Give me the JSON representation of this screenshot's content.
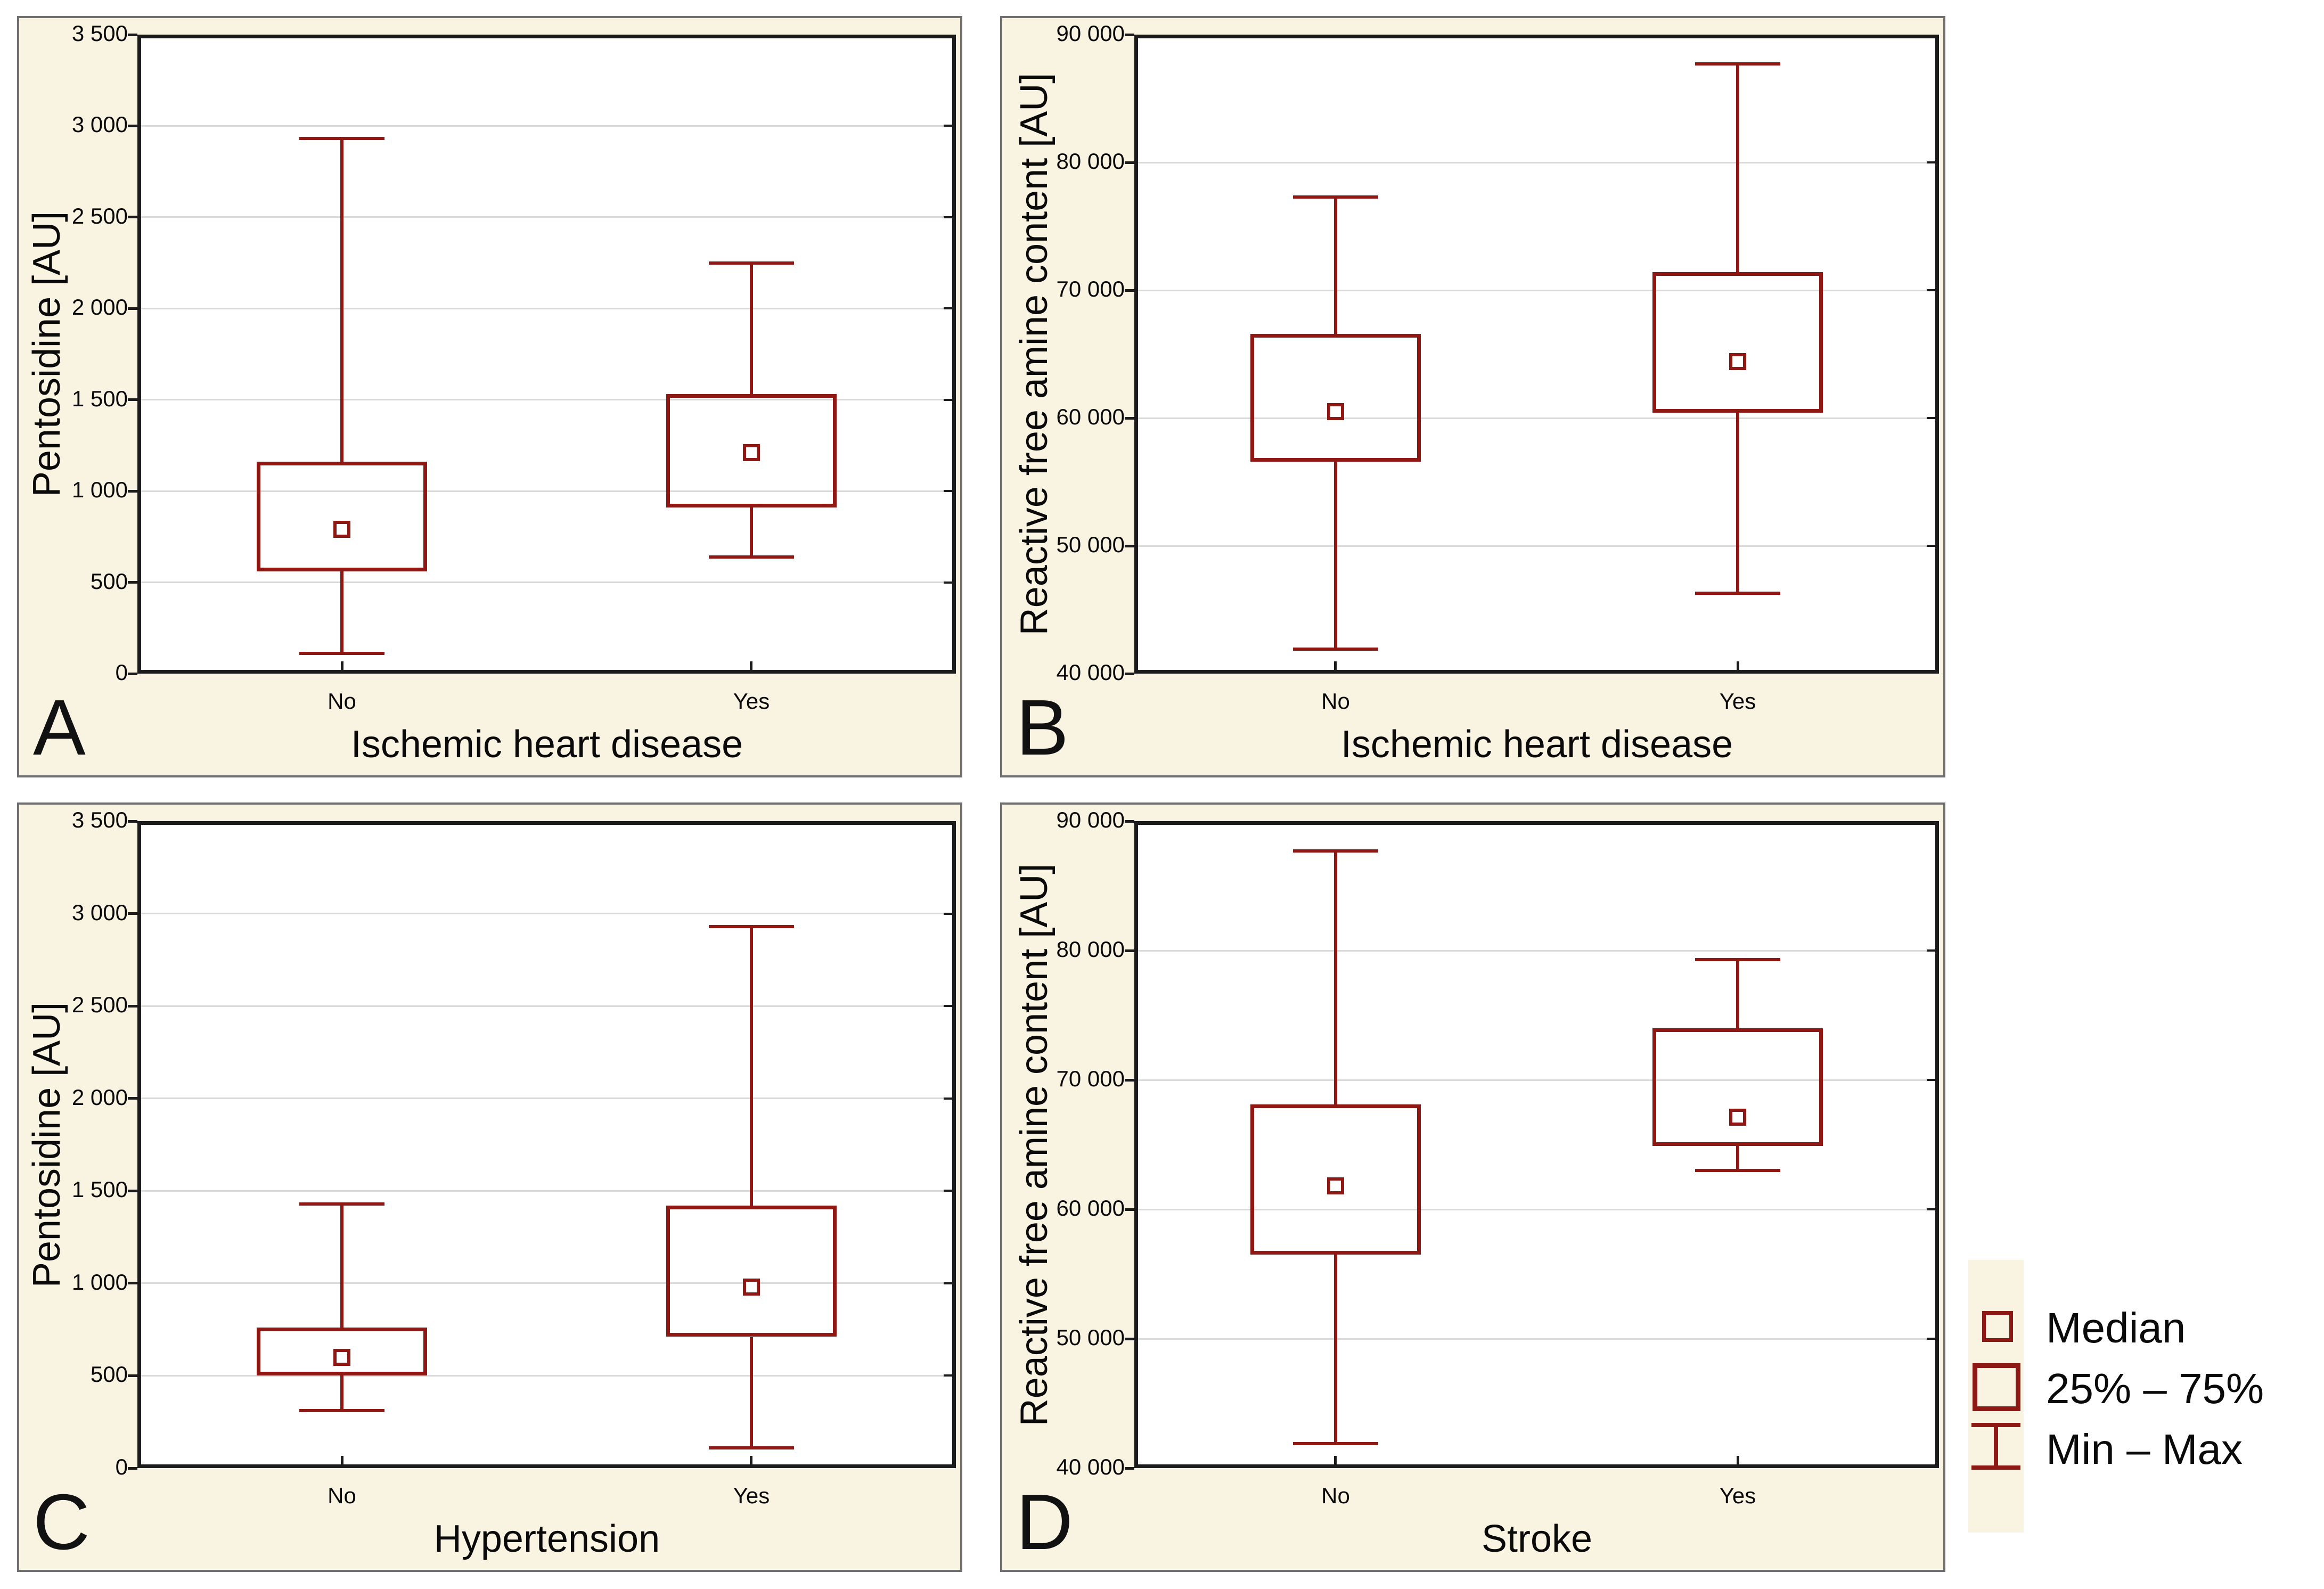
{
  "figure": {
    "description": "Four-panel box-and-whisker figure comparing AGE markers across patient groups",
    "background_color": "#ffffff"
  },
  "colors": {
    "box_red": "#8e1813",
    "panel_background": "#f9f3e2",
    "panel_border": "#707070",
    "frame": "#1c1c1c",
    "gridline": "#d9d9d9",
    "text": "#0a0a0a"
  },
  "legend": {
    "position": "bottom-right",
    "items": [
      {
        "symbol": "median-square-icon",
        "label": "Median"
      },
      {
        "symbol": "iqr-box-icon",
        "label": "25% – 75%"
      },
      {
        "symbol": "min-max-whisker-icon",
        "label": "Min – Max"
      }
    ]
  },
  "chart_data": [
    {
      "id": "A",
      "type": "box",
      "panel_label": "A",
      "xlabel": "Ischemic heart disease",
      "ylabel": "Pentosidine [AU]",
      "categories": [
        "No",
        "Yes"
      ],
      "ylim": [
        0,
        3500
      ],
      "grid": true,
      "yticks": [
        0,
        500,
        1000,
        1500,
        2000,
        2500,
        3000,
        3500
      ],
      "ytick_labels": [
        "0",
        "500",
        "1 000",
        "1 500",
        "2 000",
        "2 500",
        "3 000",
        "3 500"
      ],
      "series": [
        {
          "category": "No",
          "min": 110,
          "q1": 560,
          "median": 790,
          "q3": 1160,
          "max": 2930
        },
        {
          "category": "Yes",
          "min": 640,
          "q1": 910,
          "median": 1210,
          "q3": 1530,
          "max": 2250
        }
      ]
    },
    {
      "id": "B",
      "type": "box",
      "panel_label": "B",
      "xlabel": "Ischemic heart disease",
      "ylabel": "Reactive free amine content [AU]",
      "categories": [
        "No",
        "Yes"
      ],
      "ylim": [
        40000,
        90000
      ],
      "grid": true,
      "yticks": [
        40000,
        50000,
        60000,
        70000,
        80000,
        90000
      ],
      "ytick_labels": [
        "40 000",
        "50 000",
        "60 000",
        "70 000",
        "80 000",
        "90 000"
      ],
      "series": [
        {
          "category": "No",
          "min": 41900,
          "q1": 56600,
          "median": 60500,
          "q3": 66600,
          "max": 77300
        },
        {
          "category": "Yes",
          "min": 46300,
          "q1": 60400,
          "median": 64400,
          "q3": 71400,
          "max": 87700
        }
      ]
    },
    {
      "id": "C",
      "type": "box",
      "panel_label": "C",
      "xlabel": "Hypertension",
      "ylabel": "Pentosidine [AU]",
      "categories": [
        "No",
        "Yes"
      ],
      "ylim": [
        0,
        3500
      ],
      "grid": true,
      "yticks": [
        0,
        500,
        1000,
        1500,
        2000,
        2500,
        3000,
        3500
      ],
      "ytick_labels": [
        "0",
        "500",
        "1 000",
        "1 500",
        "2 000",
        "2 500",
        "3 000",
        "3 500"
      ],
      "series": [
        {
          "category": "No",
          "min": 310,
          "q1": 500,
          "median": 600,
          "q3": 760,
          "max": 1430
        },
        {
          "category": "Yes",
          "min": 110,
          "q1": 710,
          "median": 980,
          "q3": 1420,
          "max": 2930
        }
      ]
    },
    {
      "id": "D",
      "type": "box",
      "panel_label": "D",
      "xlabel": "Stroke",
      "ylabel": "Reactive free amine content [AU]",
      "categories": [
        "No",
        "Yes"
      ],
      "ylim": [
        40000,
        90000
      ],
      "grid": true,
      "yticks": [
        40000,
        50000,
        60000,
        70000,
        80000,
        90000
      ],
      "ytick_labels": [
        "40 000",
        "50 000",
        "60 000",
        "70 000",
        "80 000",
        "90 000"
      ],
      "series": [
        {
          "category": "No",
          "min": 41900,
          "q1": 56500,
          "median": 61800,
          "q3": 68100,
          "max": 87700
        },
        {
          "category": "Yes",
          "min": 63000,
          "q1": 64900,
          "median": 67100,
          "q3": 74000,
          "max": 79300
        }
      ]
    }
  ]
}
